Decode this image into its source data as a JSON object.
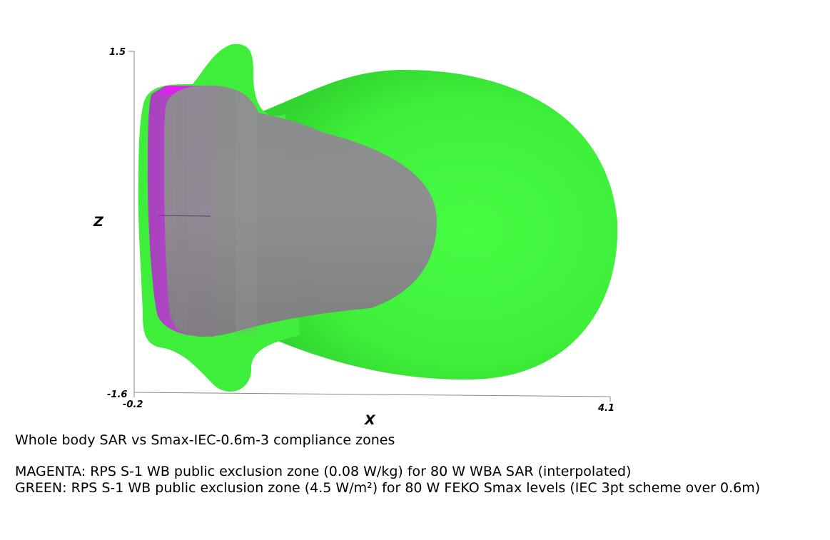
{
  "chart_data": {
    "type": "3d-surface",
    "xlabel": "X",
    "zlabel": "Z",
    "xlim": [
      -0.2,
      4.1
    ],
    "zlim": [
      -1.6,
      1.5
    ],
    "x_tick_labels": [
      "-0.2",
      "4.1"
    ],
    "z_tick_labels": [
      "1.5",
      "-1.6"
    ],
    "surfaces": [
      {
        "name": "GREEN",
        "color": "#44f53f",
        "threshold": "4.5 W/m²",
        "quantity": "FEKO Smax levels"
      },
      {
        "name": "MAGENTA",
        "color": "#c43bd6",
        "threshold": "0.08 W/kg",
        "quantity": "WBA SAR"
      }
    ],
    "grid": false
  },
  "caption": {
    "title": "Whole body SAR vs Smax-IEC-0.6m-3 compliance zones",
    "line1": "MAGENTA: RPS S-1 WB public exclusion zone (0.08 W/kg) for 80 W WBA SAR (interpolated)",
    "line2": "GREEN: RPS S-1 WB public exclusion zone (4.5 W/m²) for 80 W FEKO Smax levels (IEC 3pt scheme over 0.6m)"
  }
}
